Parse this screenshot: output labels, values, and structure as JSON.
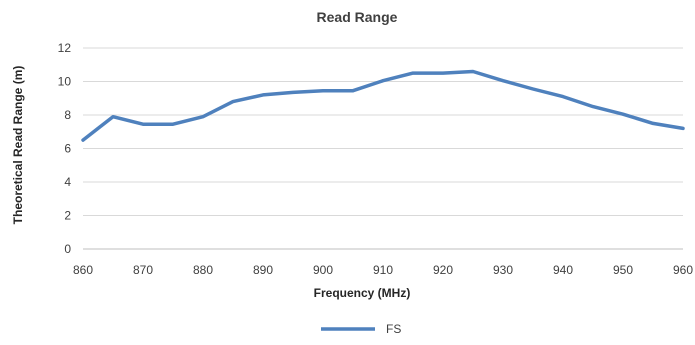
{
  "chart_data": {
    "type": "line",
    "title": "Read Range",
    "xlabel": "Frequency (MHz)",
    "ylabel": "Theoretical Read Range (m)",
    "x": [
      860,
      865,
      870,
      875,
      880,
      885,
      890,
      895,
      900,
      905,
      910,
      915,
      920,
      925,
      930,
      935,
      940,
      945,
      950,
      955,
      960
    ],
    "xticks": [
      860,
      870,
      880,
      890,
      900,
      910,
      920,
      930,
      940,
      950,
      960
    ],
    "xlim": [
      860,
      960
    ],
    "ylim": [
      0,
      12
    ],
    "yticks": [
      0,
      2,
      4,
      6,
      8,
      10,
      12
    ],
    "grid": true,
    "legend_position": "bottom-center",
    "series": [
      {
        "name": "FS",
        "color": "#4f81bd",
        "values": [
          6.5,
          7.9,
          7.45,
          7.45,
          7.9,
          8.8,
          9.2,
          9.35,
          9.45,
          9.45,
          10.05,
          10.5,
          10.5,
          10.6,
          10.05,
          9.55,
          9.1,
          8.5,
          8.05,
          7.5,
          7.2
        ]
      }
    ]
  }
}
